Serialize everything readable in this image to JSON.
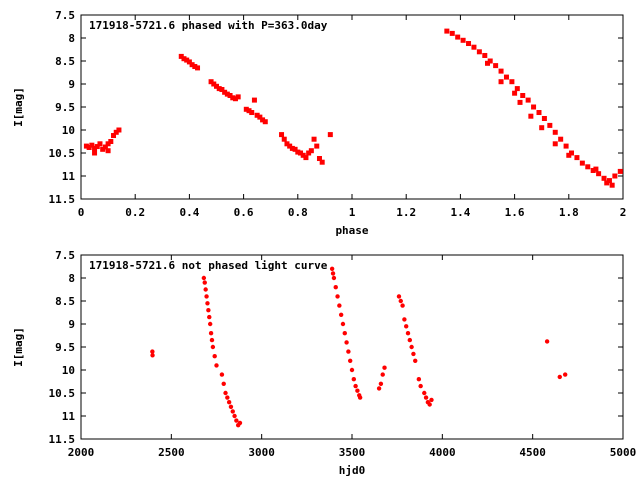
{
  "chart_data": [
    {
      "type": "scatter",
      "title": "171918-5721.6 phased with P=363.0day",
      "xlabel": "phase",
      "ylabel": "I[mag]",
      "xlim": [
        0,
        2
      ],
      "ylim": [
        7.5,
        11.5
      ],
      "y_inverted": true,
      "grid": false,
      "marker_color": "#ff0000",
      "x_ticks": [
        0,
        0.2,
        0.4,
        0.6,
        0.8,
        1,
        1.2,
        1.4,
        1.6,
        1.8,
        2
      ],
      "x_tick_labels": [
        "0",
        "0.2",
        "0.4",
        "0.6",
        "0.8",
        "1",
        "1.2",
        "1.4",
        "1.6",
        "1.8",
        "2"
      ],
      "y_ticks": [
        7.5,
        8,
        8.5,
        9,
        9.5,
        10,
        10.5,
        11,
        11.5
      ],
      "y_tick_labels": [
        "7.5",
        "8",
        "8.5",
        "9",
        "9.5",
        "10",
        "10.5",
        "11",
        "11.5"
      ],
      "series": [
        {
          "points": [
            [
              0.02,
              10.35
            ],
            [
              0.03,
              10.38
            ],
            [
              0.04,
              10.33
            ],
            [
              0.05,
              10.4
            ],
            [
              0.06,
              10.36
            ],
            [
              0.07,
              10.3
            ],
            [
              0.08,
              10.42
            ],
            [
              0.09,
              10.37
            ],
            [
              0.1,
              10.3
            ],
            [
              0.11,
              10.25
            ],
            [
              0.12,
              10.12
            ],
            [
              0.13,
              10.05
            ],
            [
              0.14,
              10.0
            ],
            [
              0.1,
              10.45
            ],
            [
              0.05,
              10.5
            ],
            [
              0.37,
              8.4
            ],
            [
              0.38,
              8.45
            ],
            [
              0.39,
              8.48
            ],
            [
              0.4,
              8.52
            ],
            [
              0.41,
              8.58
            ],
            [
              0.42,
              8.62
            ],
            [
              0.43,
              8.65
            ],
            [
              0.48,
              8.95
            ],
            [
              0.49,
              9.0
            ],
            [
              0.5,
              9.05
            ],
            [
              0.51,
              9.1
            ],
            [
              0.52,
              9.12
            ],
            [
              0.53,
              9.18
            ],
            [
              0.54,
              9.22
            ],
            [
              0.55,
              9.25
            ],
            [
              0.56,
              9.3
            ],
            [
              0.57,
              9.32
            ],
            [
              0.58,
              9.28
            ],
            [
              0.61,
              9.55
            ],
            [
              0.62,
              9.58
            ],
            [
              0.63,
              9.62
            ],
            [
              0.64,
              9.35
            ],
            [
              0.65,
              9.68
            ],
            [
              0.66,
              9.72
            ],
            [
              0.67,
              9.78
            ],
            [
              0.68,
              9.82
            ],
            [
              0.74,
              10.1
            ],
            [
              0.75,
              10.2
            ],
            [
              0.76,
              10.3
            ],
            [
              0.77,
              10.35
            ],
            [
              0.78,
              10.4
            ],
            [
              0.79,
              10.42
            ],
            [
              0.8,
              10.48
            ],
            [
              0.81,
              10.5
            ],
            [
              0.82,
              10.55
            ],
            [
              0.83,
              10.6
            ],
            [
              0.84,
              10.5
            ],
            [
              0.85,
              10.45
            ],
            [
              0.86,
              10.2
            ],
            [
              0.87,
              10.35
            ],
            [
              0.88,
              10.62
            ],
            [
              0.89,
              10.7
            ],
            [
              0.92,
              10.1
            ],
            [
              1.35,
              7.85
            ],
            [
              1.37,
              7.9
            ],
            [
              1.39,
              7.98
            ],
            [
              1.41,
              8.05
            ],
            [
              1.43,
              8.12
            ],
            [
              1.45,
              8.2
            ],
            [
              1.47,
              8.3
            ],
            [
              1.49,
              8.38
            ],
            [
              1.51,
              8.5
            ],
            [
              1.53,
              8.6
            ],
            [
              1.55,
              8.72
            ],
            [
              1.57,
              8.85
            ],
            [
              1.59,
              8.95
            ],
            [
              1.61,
              9.1
            ],
            [
              1.63,
              9.25
            ],
            [
              1.65,
              9.35
            ],
            [
              1.67,
              9.5
            ],
            [
              1.69,
              9.62
            ],
            [
              1.71,
              9.75
            ],
            [
              1.73,
              9.9
            ],
            [
              1.75,
              10.05
            ],
            [
              1.77,
              10.2
            ],
            [
              1.79,
              10.35
            ],
            [
              1.81,
              10.5
            ],
            [
              1.83,
              10.6
            ],
            [
              1.85,
              10.72
            ],
            [
              1.87,
              10.8
            ],
            [
              1.89,
              10.88
            ],
            [
              1.91,
              10.95
            ],
            [
              1.93,
              11.05
            ],
            [
              1.95,
              11.1
            ],
            [
              1.97,
              11.0
            ],
            [
              1.99,
              10.9
            ],
            [
              1.5,
              8.55
            ],
            [
              1.55,
              8.95
            ],
            [
              1.6,
              9.2
            ],
            [
              1.62,
              9.4
            ],
            [
              1.66,
              9.7
            ],
            [
              1.7,
              9.95
            ],
            [
              1.75,
              10.3
            ],
            [
              1.8,
              10.55
            ],
            [
              1.9,
              10.85
            ],
            [
              1.94,
              11.15
            ],
            [
              1.96,
              11.2
            ]
          ]
        }
      ]
    },
    {
      "type": "scatter",
      "title": "171918-5721.6 not phased light curve",
      "xlabel": "hjd0",
      "ylabel": "I[mag]",
      "xlim": [
        2000,
        5000
      ],
      "ylim": [
        7.5,
        11.5
      ],
      "y_inverted": true,
      "grid": false,
      "marker_color": "#ff0000",
      "x_ticks": [
        2000,
        2500,
        3000,
        3500,
        4000,
        4500,
        5000
      ],
      "x_tick_labels": [
        "2000",
        "2500",
        "3000",
        "3500",
        "4000",
        "4500",
        "5000"
      ],
      "y_ticks": [
        7.5,
        8,
        8.5,
        9,
        9.5,
        10,
        10.5,
        11,
        11.5
      ],
      "y_tick_labels": [
        "7.5",
        "8",
        "8.5",
        "9",
        "9.5",
        "10",
        "10.5",
        "11",
        "11.5"
      ],
      "series": [
        {
          "points": [
            [
              2395,
              9.6
            ],
            [
              2396,
              9.68
            ],
            [
              2680,
              8.0
            ],
            [
              2685,
              8.1
            ],
            [
              2690,
              8.25
            ],
            [
              2695,
              8.4
            ],
            [
              2700,
              8.55
            ],
            [
              2705,
              8.7
            ],
            [
              2710,
              8.85
            ],
            [
              2715,
              9.0
            ],
            [
              2720,
              9.2
            ],
            [
              2725,
              9.35
            ],
            [
              2730,
              9.5
            ],
            [
              2740,
              9.7
            ],
            [
              2750,
              9.9
            ],
            [
              2780,
              10.1
            ],
            [
              2790,
              10.3
            ],
            [
              2800,
              10.5
            ],
            [
              2810,
              10.6
            ],
            [
              2820,
              10.7
            ],
            [
              2830,
              10.8
            ],
            [
              2840,
              10.9
            ],
            [
              2850,
              11.0
            ],
            [
              2860,
              11.1
            ],
            [
              2870,
              11.2
            ],
            [
              2880,
              11.15
            ],
            [
              3390,
              7.8
            ],
            [
              3395,
              7.9
            ],
            [
              3400,
              8.0
            ],
            [
              3410,
              8.2
            ],
            [
              3420,
              8.4
            ],
            [
              3430,
              8.6
            ],
            [
              3440,
              8.8
            ],
            [
              3450,
              9.0
            ],
            [
              3460,
              9.2
            ],
            [
              3470,
              9.4
            ],
            [
              3480,
              9.6
            ],
            [
              3490,
              9.8
            ],
            [
              3500,
              10.0
            ],
            [
              3510,
              10.2
            ],
            [
              3520,
              10.35
            ],
            [
              3530,
              10.45
            ],
            [
              3540,
              10.55
            ],
            [
              3545,
              10.6
            ],
            [
              3650,
              10.4
            ],
            [
              3660,
              10.3
            ],
            [
              3670,
              10.1
            ],
            [
              3680,
              9.95
            ],
            [
              3760,
              8.4
            ],
            [
              3770,
              8.5
            ],
            [
              3780,
              8.6
            ],
            [
              3790,
              8.9
            ],
            [
              3800,
              9.05
            ],
            [
              3810,
              9.2
            ],
            [
              3820,
              9.35
            ],
            [
              3830,
              9.5
            ],
            [
              3840,
              9.65
            ],
            [
              3850,
              9.8
            ],
            [
              3870,
              10.2
            ],
            [
              3880,
              10.35
            ],
            [
              3900,
              10.5
            ],
            [
              3910,
              10.6
            ],
            [
              3920,
              10.7
            ],
            [
              3930,
              10.75
            ],
            [
              3940,
              10.65
            ],
            [
              4580,
              9.38
            ],
            [
              4650,
              10.15
            ],
            [
              4680,
              10.1
            ]
          ]
        }
      ]
    }
  ]
}
